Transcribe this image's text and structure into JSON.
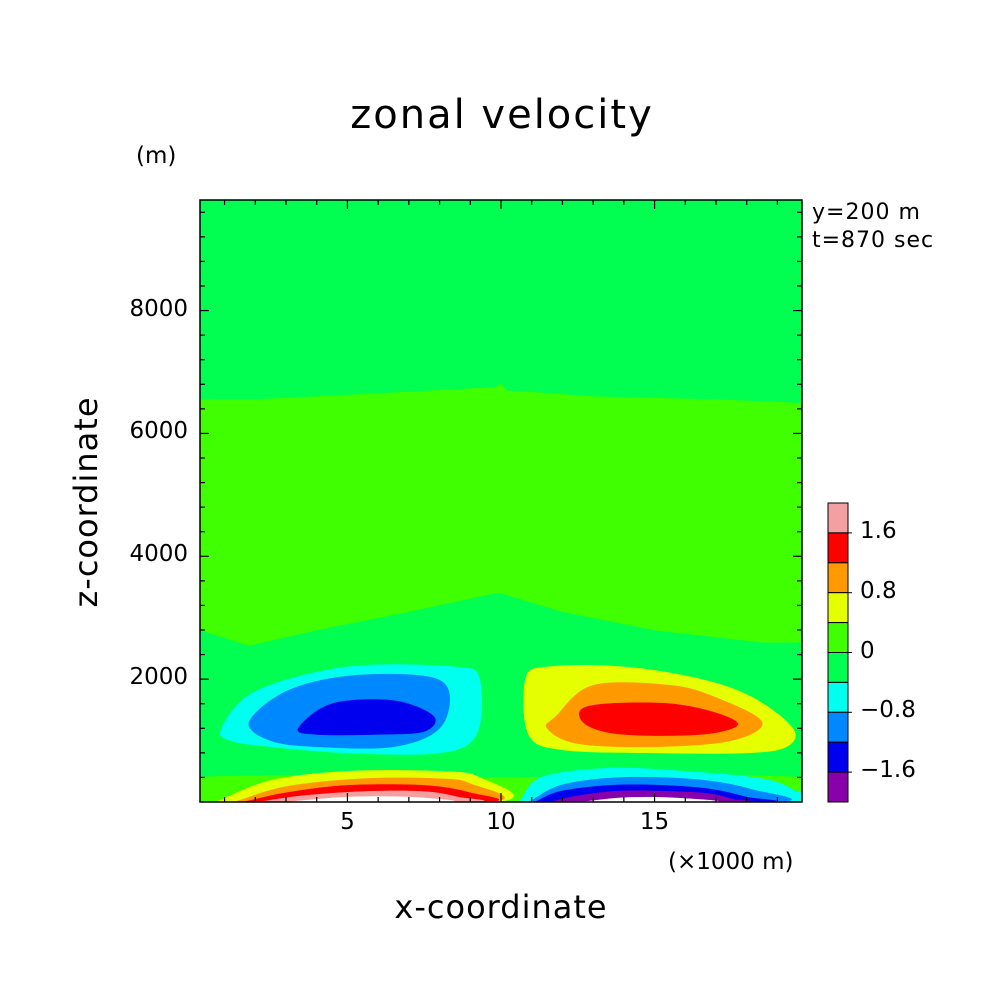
{
  "chart_data": {
    "type": "heatmap",
    "title": "zonal velocity",
    "xlabel": "x-coordinate",
    "ylabel": "z-coordinate",
    "x_unit": "(×1000 m)",
    "y_unit": "(m)",
    "annotations": [
      "y=200 m",
      "t=870 sec"
    ],
    "xlim": [
      0.2,
      19.8
    ],
    "ylim": [
      0,
      9800
    ],
    "x_ticks": [
      5,
      10,
      15
    ],
    "y_ticks": [
      2000,
      4000,
      6000,
      8000
    ],
    "colorbar": {
      "tick_labels": [
        "1.6",
        "0.8",
        "0",
        "-0.8",
        "-1.6"
      ],
      "bins": [
        {
          "range": [
            2.0,
            2.4
          ],
          "color": "#f5a0a0"
        },
        {
          "range": [
            1.6,
            2.0
          ],
          "color": "#ff0000"
        },
        {
          "range": [
            1.2,
            1.6
          ],
          "color": "#ff9900"
        },
        {
          "range": [
            0.8,
            1.2
          ],
          "color": "#e6ff00"
        },
        {
          "range": [
            0.4,
            0.8
          ],
          "color": "#40ff00"
        },
        {
          "range": [
            0.0,
            0.4
          ],
          "color": "#00ff50"
        },
        {
          "range": [
            -0.4,
            0.0
          ],
          "color": "#00ffee"
        },
        {
          "range": [
            -0.8,
            -0.4
          ],
          "color": "#0088ff"
        },
        {
          "range": [
            -1.2,
            -0.8
          ],
          "color": "#0000ee"
        },
        {
          "range": [
            -1.6,
            -1.2
          ],
          "color": "#8800aa"
        }
      ]
    },
    "regions": [
      {
        "level": "0.4 to 0.8",
        "color": "#40ff00",
        "x": [
          0.2,
          1.8,
          4.0,
          7.0,
          9.8,
          10.0,
          12.0,
          15.0,
          18.5,
          19.8,
          19.8,
          17.0,
          13.0,
          10.2,
          10.0,
          9.8,
          6.0,
          2.0,
          0.2
        ],
        "z": [
          2800,
          2550,
          2800,
          3100,
          3400,
          3400,
          3100,
          2800,
          2600,
          2600,
          6500,
          6550,
          6600,
          6700,
          6800,
          6750,
          6650,
          6550,
          6550
        ]
      },
      {
        "level": "0.0 to 0.4",
        "color": "#00ff50",
        "x": [
          0.2,
          1.0,
          3.0,
          6.0,
          9.8,
          10.2,
          14.0,
          18.0,
          19.8,
          19.8,
          10.2,
          10.2,
          9.8,
          9.8,
          0.2
        ],
        "z": [
          9800,
          9800,
          9800,
          9800,
          9800,
          9800,
          9800,
          9800,
          9800,
          6500,
          6700,
          9800,
          9800,
          6800,
          6550
        ]
      },
      {
        "level": "-0.4 to 0.0",
        "color": "#00ffee",
        "x": [
          0.9,
          2.0,
          5.0,
          8.5,
          9.3,
          9.2,
          8.0,
          5.0,
          2.5,
          1.2
        ],
        "z": [
          1200,
          1800,
          2200,
          2200,
          2000,
          1100,
          800,
          800,
          900,
          1000
        ]
      },
      {
        "level": "-0.8 to -0.4",
        "color": "#0088ff",
        "x": [
          1.8,
          3.0,
          5.0,
          7.5,
          8.3,
          8.0,
          6.5,
          4.0,
          2.5
        ],
        "z": [
          1300,
          1800,
          2050,
          2050,
          1800,
          1200,
          900,
          900,
          1000
        ]
      },
      {
        "level": "-1.2 to -0.8",
        "color": "#0000ee",
        "x": [
          3.4,
          4.5,
          6.5,
          7.8,
          7.5,
          6.0,
          4.0
        ],
        "z": [
          1200,
          1600,
          1650,
          1400,
          1150,
          1100,
          1100
        ]
      },
      {
        "level": "0.8 to 1.2",
        "color": "#e6ff00",
        "x": [
          10.8,
          11.5,
          14.0,
          16.5,
          18.2,
          19.5,
          19.3,
          18.0,
          15.0,
          12.0,
          10.9
        ],
        "z": [
          2000,
          2200,
          2200,
          2000,
          1700,
          1200,
          900,
          800,
          800,
          850,
          1100
        ]
      },
      {
        "level": "1.2 to 1.6",
        "color": "#ff9900",
        "x": [
          11.8,
          13.0,
          15.5,
          17.0,
          18.5,
          17.5,
          15.0,
          12.5,
          11.5
        ],
        "z": [
          1400,
          1900,
          1900,
          1700,
          1300,
          1000,
          900,
          950,
          1200
        ]
      },
      {
        "level": "1.6 to 2.0",
        "color": "#ff0000",
        "x": [
          12.6,
          13.5,
          15.5,
          17.0,
          17.7,
          16.5,
          14.0,
          12.8
        ],
        "z": [
          1500,
          1600,
          1600,
          1450,
          1250,
          1100,
          1100,
          1250
        ]
      },
      {
        "level": "0.4 to 0.8 (low)",
        "color": "#40ff00",
        "x": [
          0.2,
          9.8,
          10.2,
          19.8,
          19.8,
          0.2
        ],
        "z": [
          400,
          400,
          400,
          400,
          0,
          0
        ]
      },
      {
        "level": "0.8 to 1.2 (low)",
        "color": "#e6ff00",
        "x": [
          0.7,
          2.5,
          5.0,
          8.0,
          9.3,
          9.8,
          0.3
        ],
        "z": [
          0,
          350,
          500,
          500,
          400,
          0,
          0
        ]
      },
      {
        "level": "1.2 to 1.6 (low)",
        "color": "#ff9900",
        "x": [
          1.3,
          3.0,
          5.5,
          8.0,
          9.0,
          9.6,
          0.9
        ],
        "z": [
          0,
          250,
          380,
          380,
          300,
          0,
          0
        ]
      },
      {
        "level": "1.6 to 2.0 (low)",
        "color": "#ff0000",
        "x": [
          1.6,
          3.0,
          5.0,
          7.5,
          9.0,
          9.4,
          1.3
        ],
        "z": [
          0,
          150,
          270,
          270,
          150,
          0,
          0
        ]
      },
      {
        "level": "2.0 to 2.4 (low)",
        "color": "#f5a0a0",
        "x": [
          2.1,
          3.5,
          5.5,
          7.5,
          8.6,
          9.0,
          1.8
        ],
        "z": [
          0,
          100,
          170,
          170,
          80,
          0,
          0
        ]
      },
      {
        "level": "above 2.4 (low)",
        "color": "#ffffff",
        "x": [
          3.0,
          5.0,
          7.0,
          8.3,
          2.7
        ],
        "z": [
          0,
          80,
          80,
          0,
          0
        ]
      },
      {
        "level": "-0.4 to 0.0 (low)",
        "color": "#00ffee",
        "x": [
          10.6,
          11.3,
          13.5,
          16.0,
          18.5,
          19.5,
          19.8,
          10.4
        ],
        "z": [
          0,
          400,
          550,
          500,
          380,
          200,
          0,
          0
        ]
      },
      {
        "level": "-0.8 to -0.4 (low)",
        "color": "#0088ff",
        "x": [
          10.9,
          12.0,
          14.0,
          16.5,
          18.2,
          19.0,
          10.7
        ],
        "z": [
          0,
          280,
          400,
          360,
          200,
          0,
          0
        ]
      },
      {
        "level": "-1.2 to -0.8 (low)",
        "color": "#0000ee",
        "x": [
          11.1,
          12.0,
          14.0,
          16.5,
          18.0,
          18.5,
          10.9
        ],
        "z": [
          0,
          180,
          280,
          230,
          80,
          0,
          0
        ]
      },
      {
        "level": "-1.6 to -1.2 (low)",
        "color": "#8800aa",
        "x": [
          11.6,
          12.5,
          14.0,
          16.5,
          17.6,
          18.0,
          11.3
        ],
        "z": [
          0,
          100,
          180,
          150,
          40,
          0,
          0
        ]
      },
      {
        "level": "below -1.6 (low)",
        "color": "#ffffff",
        "x": [
          12.6,
          14.0,
          15.5,
          17.0,
          12.3
        ],
        "z": [
          0,
          70,
          70,
          0,
          0
        ]
      }
    ]
  }
}
